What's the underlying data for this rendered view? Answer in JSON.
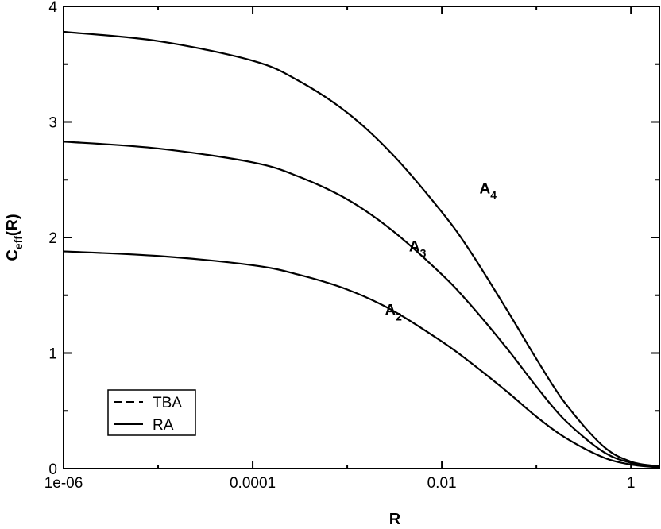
{
  "chart_data": {
    "type": "line",
    "xlabel": "R",
    "ylabel_main": "C",
    "ylabel_sub": "eff",
    "ylabel_tail": "(R)",
    "x_scale": "log",
    "xlim": [
      1e-06,
      2
    ],
    "ylim": [
      0,
      4
    ],
    "x_ticks": [
      {
        "value": 1e-06,
        "label": "1e-06"
      },
      {
        "value": 0.0001,
        "label": "0.0001"
      },
      {
        "value": 0.01,
        "label": "0.01"
      },
      {
        "value": 1,
        "label": "1"
      }
    ],
    "y_ticks": [
      {
        "value": 0,
        "label": "0"
      },
      {
        "value": 1,
        "label": "1"
      },
      {
        "value": 2,
        "label": "2"
      },
      {
        "value": 3,
        "label": "3"
      },
      {
        "value": 4,
        "label": "4"
      }
    ],
    "grid": false,
    "legend": {
      "placement": "bottom-left",
      "entries": [
        {
          "label": "TBA",
          "style": "dashed"
        },
        {
          "label": "RA",
          "style": "solid"
        }
      ]
    },
    "series": [
      {
        "label_main": "A",
        "label_sub": "4",
        "style": "solid",
        "x": [
          1e-06,
          1e-05,
          0.0001,
          0.0003,
          0.001,
          0.003,
          0.01,
          0.02,
          0.05,
          0.1,
          0.2,
          0.5,
          1,
          2
        ],
        "y": [
          3.78,
          3.7,
          3.53,
          3.36,
          3.08,
          2.72,
          2.22,
          1.88,
          1.36,
          0.95,
          0.57,
          0.2,
          0.06,
          0.02
        ],
        "annot_x": 0.025,
        "annot_y": 2.38
      },
      {
        "label_main": "A",
        "label_sub": "3",
        "style": "solid",
        "x": [
          1e-06,
          1e-05,
          0.0001,
          0.0003,
          0.001,
          0.003,
          0.01,
          0.02,
          0.05,
          0.1,
          0.2,
          0.5,
          1,
          2
        ],
        "y": [
          2.83,
          2.77,
          2.65,
          2.53,
          2.33,
          2.06,
          1.68,
          1.42,
          1.03,
          0.71,
          0.42,
          0.15,
          0.05,
          0.015
        ],
        "annot_x": 0.0045,
        "annot_y": 1.88
      },
      {
        "label_main": "A",
        "label_sub": "2",
        "style": "solid",
        "x": [
          1e-06,
          1e-05,
          0.0001,
          0.0003,
          0.001,
          0.003,
          0.01,
          0.02,
          0.05,
          0.1,
          0.2,
          0.5,
          1,
          2
        ],
        "y": [
          1.88,
          1.84,
          1.76,
          1.68,
          1.55,
          1.37,
          1.1,
          0.92,
          0.66,
          0.45,
          0.27,
          0.1,
          0.035,
          0.01
        ],
        "annot_x": 0.0025,
        "annot_y": 1.33
      }
    ]
  }
}
